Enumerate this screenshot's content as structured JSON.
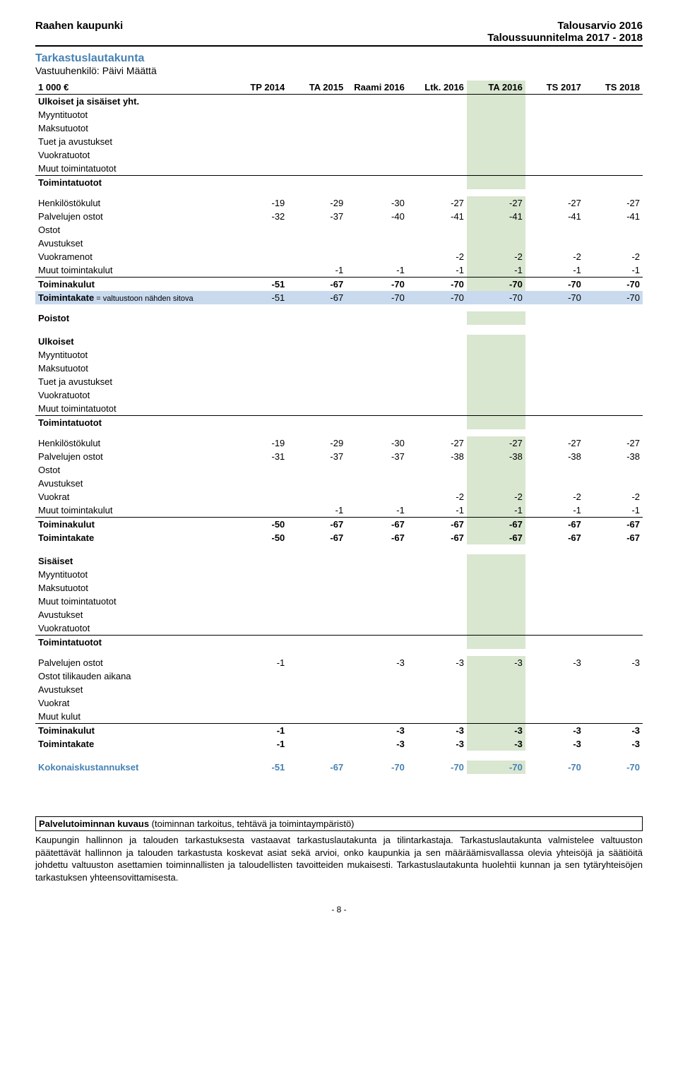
{
  "header": {
    "left": "Raahen kaupunki",
    "right1": "Talousarvio 2016",
    "right2": "Taloussuunnitelma 2017 - 2018"
  },
  "section_title": "Tarkastuslautakunta",
  "subtitle": "Vastuuhenkilö: Päivi Määttä",
  "unit_label": "1 000 €",
  "columns": [
    "TP 2014",
    "TA 2015",
    "Raami 2016",
    "Ltk. 2016",
    "TA 2016",
    "TS 2017",
    "TS 2018"
  ],
  "highlight_col_index": 4,
  "colors": {
    "section_blue": "#4682b4",
    "highlight_green": "#d9e6d0",
    "sitova_bg": "#c9daee",
    "text": "#000000",
    "background": "#ffffff"
  },
  "groups": [
    {
      "title": "Ulkoiset ja sisäiset yht.",
      "title_bold": true,
      "pre_rows": [
        {
          "label": "Myyntituotot",
          "vals": [
            "",
            "",
            "",
            "",
            "",
            "",
            ""
          ]
        },
        {
          "label": "Maksutuotot",
          "vals": [
            "",
            "",
            "",
            "",
            "",
            "",
            ""
          ]
        },
        {
          "label": "Tuet ja avustukset",
          "vals": [
            "",
            "",
            "",
            "",
            "",
            "",
            ""
          ]
        },
        {
          "label": "Vuokratuotot",
          "vals": [
            "",
            "",
            "",
            "",
            "",
            "",
            ""
          ]
        },
        {
          "label": "Muut toimintatuotot",
          "vals": [
            "",
            "",
            "",
            "",
            "",
            "",
            ""
          ]
        },
        {
          "label": "Toimintatuotot",
          "vals": [
            "",
            "",
            "",
            "",
            "",
            "",
            ""
          ],
          "bold": true,
          "border_top": true
        }
      ],
      "rows": [
        {
          "label": "Henkilöstökulut",
          "vals": [
            "-19",
            "-29",
            "-30",
            "-27",
            "-27",
            "-27",
            "-27"
          ]
        },
        {
          "label": "Palvelujen ostot",
          "vals": [
            "-32",
            "-37",
            "-40",
            "-41",
            "-41",
            "-41",
            "-41"
          ]
        },
        {
          "label": "Ostot",
          "vals": [
            "",
            "",
            "",
            "",
            "",
            "",
            ""
          ]
        },
        {
          "label": "Avustukset",
          "vals": [
            "",
            "",
            "",
            "",
            "",
            "",
            ""
          ]
        },
        {
          "label": "Vuokramenot",
          "vals": [
            "",
            "",
            "",
            "-2",
            "-2",
            "-2",
            "-2"
          ]
        },
        {
          "label": "Muut toimintakulut",
          "vals": [
            "",
            "-1",
            "-1",
            "-1",
            "-1",
            "-1",
            "-1"
          ]
        },
        {
          "label": "Toiminakulut",
          "vals": [
            "-51",
            "-67",
            "-70",
            "-70",
            "-70",
            "-70",
            "-70"
          ],
          "bold": true,
          "border_top": true
        },
        {
          "label": "Toimintakate",
          "label_extra": " = valtuustoon nähden sitova",
          "vals": [
            "-51",
            "-67",
            "-70",
            "-70",
            "-70",
            "-70",
            "-70"
          ],
          "sitova": true
        },
        {
          "label": "Poistot",
          "vals": [
            "",
            "",
            "",
            "",
            "",
            "",
            ""
          ],
          "bold": true,
          "spacer_before": true
        }
      ]
    },
    {
      "title": "Ulkoiset",
      "title_bold": true,
      "pre_rows": [
        {
          "label": "Myyntituotot",
          "vals": [
            "",
            "",
            "",
            "",
            "",
            "",
            ""
          ]
        },
        {
          "label": "Maksutuotot",
          "vals": [
            "",
            "",
            "",
            "",
            "",
            "",
            ""
          ]
        },
        {
          "label": "Tuet ja avustukset",
          "vals": [
            "",
            "",
            "",
            "",
            "",
            "",
            ""
          ]
        },
        {
          "label": "Vuokratuotot",
          "vals": [
            "",
            "",
            "",
            "",
            "",
            "",
            ""
          ]
        },
        {
          "label": "Muut toimintatuotot",
          "vals": [
            "",
            "",
            "",
            "",
            "",
            "",
            ""
          ]
        },
        {
          "label": "Toimintatuotot",
          "vals": [
            "",
            "",
            "",
            "",
            "",
            "",
            ""
          ],
          "bold": true,
          "border_top": true
        }
      ],
      "rows": [
        {
          "label": "Henkilöstökulut",
          "vals": [
            "-19",
            "-29",
            "-30",
            "-27",
            "-27",
            "-27",
            "-27"
          ]
        },
        {
          "label": "Palvelujen ostot",
          "vals": [
            "-31",
            "-37",
            "-37",
            "-38",
            "-38",
            "-38",
            "-38"
          ]
        },
        {
          "label": "Ostot",
          "vals": [
            "",
            "",
            "",
            "",
            "",
            "",
            ""
          ]
        },
        {
          "label": "Avustukset",
          "vals": [
            "",
            "",
            "",
            "",
            "",
            "",
            ""
          ]
        },
        {
          "label": "Vuokrat",
          "vals": [
            "",
            "",
            "",
            "-2",
            "-2",
            "-2",
            "-2"
          ]
        },
        {
          "label": "Muut toimintakulut",
          "vals": [
            "",
            "-1",
            "-1",
            "-1",
            "-1",
            "-1",
            "-1"
          ]
        },
        {
          "label": "Toiminakulut",
          "vals": [
            "-50",
            "-67",
            "-67",
            "-67",
            "-67",
            "-67",
            "-67"
          ],
          "bold": true,
          "border_top": true
        },
        {
          "label": "Toimintakate",
          "vals": [
            "-50",
            "-67",
            "-67",
            "-67",
            "-67",
            "-67",
            "-67"
          ],
          "bold": true
        }
      ]
    },
    {
      "title": "Sisäiset",
      "title_bold": true,
      "pre_rows": [
        {
          "label": "Myyntituotot",
          "vals": [
            "",
            "",
            "",
            "",
            "",
            "",
            ""
          ]
        },
        {
          "label": "Maksutuotot",
          "vals": [
            "",
            "",
            "",
            "",
            "",
            "",
            ""
          ]
        },
        {
          "label": "Muut toimintatuotot",
          "vals": [
            "",
            "",
            "",
            "",
            "",
            "",
            ""
          ]
        },
        {
          "label": "Avustukset",
          "vals": [
            "",
            "",
            "",
            "",
            "",
            "",
            ""
          ]
        },
        {
          "label": "Vuokratuotot",
          "vals": [
            "",
            "",
            "",
            "",
            "",
            "",
            ""
          ]
        },
        {
          "label": "Toimintatuotot",
          "vals": [
            "",
            "",
            "",
            "",
            "",
            "",
            ""
          ],
          "bold": true,
          "border_top": true
        }
      ],
      "rows": [
        {
          "label": "Palvelujen ostot",
          "vals": [
            "-1",
            "",
            "-3",
            "-3",
            "-3",
            "-3",
            "-3"
          ]
        },
        {
          "label": "Ostot tilikauden aikana",
          "vals": [
            "",
            "",
            "",
            "",
            "",
            "",
            ""
          ]
        },
        {
          "label": "Avustukset",
          "vals": [
            "",
            "",
            "",
            "",
            "",
            "",
            ""
          ]
        },
        {
          "label": "Vuokrat",
          "vals": [
            "",
            "",
            "",
            "",
            "",
            "",
            ""
          ]
        },
        {
          "label": "Muut kulut",
          "vals": [
            "",
            "",
            "",
            "",
            "",
            "",
            ""
          ]
        },
        {
          "label": "Toiminakulut",
          "vals": [
            "-1",
            "",
            "-3",
            "-3",
            "-3",
            "-3",
            "-3"
          ],
          "bold": true,
          "border_top": true
        },
        {
          "label": "Toimintakate",
          "vals": [
            "-1",
            "",
            "-3",
            "-3",
            "-3",
            "-3",
            "-3"
          ],
          "bold": true
        }
      ]
    }
  ],
  "total_row": {
    "label": "Kokonaiskustannukset",
    "vals": [
      "-51",
      "-67",
      "-70",
      "-70",
      "-70",
      "-70",
      "-70"
    ]
  },
  "desc_title": "Palvelutoiminnan kuvaus (toiminnan tarkoitus, tehtävä ja toimintaympäristö)",
  "desc_text": "Kaupungin hallinnon ja talouden tarkastuksesta vastaavat tarkastuslautakunta ja tilintarkastaja. Tarkastuslautakunta valmistelee valtuuston päätettävät hallinnon ja talouden tarkastusta koskevat asiat sekä arvioi, onko kaupunkia ja sen määräämisvallassa olevia yhteisöjä ja säätiöitä johdettu valtuuston asettamien toiminnallisten ja taloudellisten tavoitteiden mukaisesti. Tarkastuslautakunta huolehtii kunnan ja sen tytäryhteisöjen tarkastuksen yhteensovittamisesta.",
  "page_number": "- 8 -"
}
